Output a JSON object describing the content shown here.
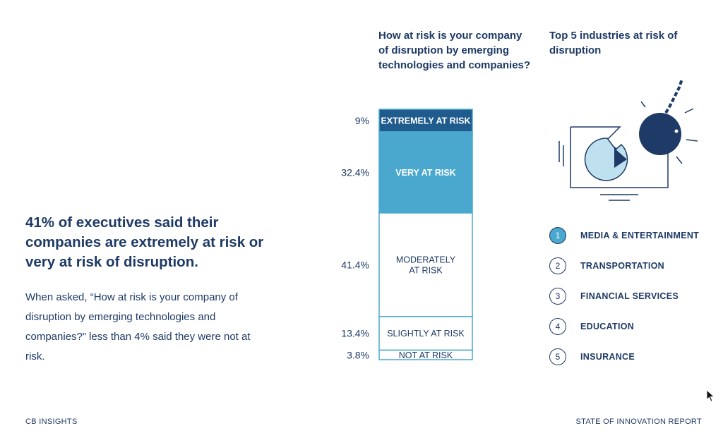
{
  "headline": "41% of executives said their companies are extremely at risk or very at risk of disruption.",
  "body": "When asked, “How at risk is your company of disruption by emerging technologies and companies?” less than 4% said they were not at risk.",
  "top5": {
    "title": "Top 5 industries at risk of disruption",
    "illustration_icon": "wrecking-ball-smashing-screen-icon",
    "items": [
      {
        "number": "1",
        "name": "MEDIA & ENTERTAINMENT",
        "highlighted": true
      },
      {
        "number": "2",
        "name": "TRANSPORTATION",
        "highlighted": false
      },
      {
        "number": "3",
        "name": "FINANCIAL SERVICES",
        "highlighted": false
      },
      {
        "number": "4",
        "name": "EDUCATION",
        "highlighted": false
      },
      {
        "number": "5",
        "name": "INSURANCE",
        "highlighted": false
      }
    ]
  },
  "footer": {
    "left": "CB INSIGHTS",
    "right": "STATE OF INNOVATION REPORT"
  },
  "colors": {
    "navy": "#1e3a66",
    "dark_blue": "#1f5b8c",
    "light_blue": "#4aa8cf",
    "outline_blue": "#4aa8cf",
    "pale_blue": "#bfe0ee"
  },
  "chart_data": {
    "type": "bar",
    "subtype": "stacked-100",
    "title": "How at risk is your company of disruption by emerging technologies and companies?",
    "segments": [
      {
        "label": "EXTREMELY AT RISK",
        "value": 9,
        "value_label": "9%",
        "fill": "#1f5b8c",
        "text_color": "#ffffff"
      },
      {
        "label": "VERY AT RISK",
        "value": 32.4,
        "value_label": "32.4%",
        "fill": "#4aa8cf",
        "text_color": "#ffffff"
      },
      {
        "label": "MODERATELY AT RISK",
        "lines": [
          "MODERATELY",
          "AT RISK"
        ],
        "value": 41.4,
        "value_label": "41.4%",
        "fill": "#ffffff",
        "text_color": "#1e3a66"
      },
      {
        "label": "SLIGHTLY AT RISK",
        "value": 13.4,
        "value_label": "13.4%",
        "fill": "#ffffff",
        "text_color": "#1e3a66"
      },
      {
        "label": "NOT AT RISK",
        "value": 3.8,
        "value_label": "3.8%",
        "fill": "#ffffff",
        "text_color": "#1e3a66"
      }
    ]
  }
}
